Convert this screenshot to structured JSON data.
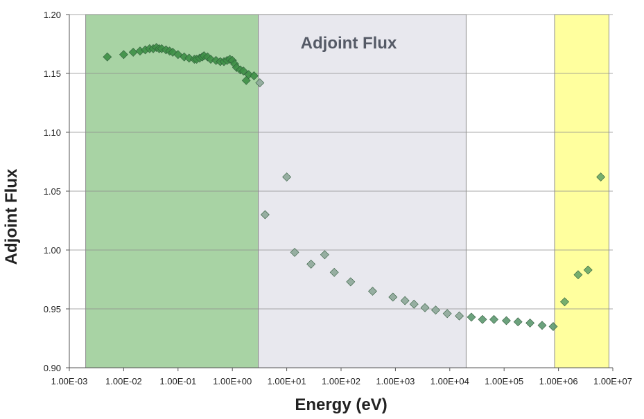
{
  "chart_data": {
    "type": "scatter",
    "title": "",
    "annotation": "Adjoint Flux",
    "xlabel": "Energy (eV)",
    "ylabel": "Adjoint Flux",
    "x_scale": "log",
    "xlim": [
      0.001,
      10000000
    ],
    "ylim": [
      0.9,
      1.2
    ],
    "x_tick_labels": [
      "1.00E-03",
      "1.00E-02",
      "1.00E-01",
      "1.00E+00",
      "1.00E+01",
      "1.00E+02",
      "1.00E+03",
      "1.00E+04",
      "1.00E+05",
      "1.00E+06",
      "1.00E+07"
    ],
    "y_tick_labels": [
      "0.90",
      "0.95",
      "1.00",
      "1.05",
      "1.10",
      "1.15",
      "1.20"
    ],
    "y_ticks": [
      0.9,
      0.95,
      1.0,
      1.05,
      1.1,
      1.15,
      1.2
    ],
    "grid": "horizontal",
    "legend": "none",
    "regions": [
      {
        "from": 0.002,
        "to": 3.0,
        "color": "#a8d3a4"
      },
      {
        "from": 3.0,
        "to": 20000,
        "color": "#e8e8ee"
      },
      {
        "from": 850000,
        "to": 8500000,
        "color": "#ffff9e"
      }
    ],
    "series": [
      {
        "color": "#2e8b57",
        "x": [
          0.005,
          0.01,
          0.015,
          0.02,
          0.025,
          0.03,
          0.035,
          0.04,
          0.045,
          0.05,
          0.06,
          0.07,
          0.08,
          0.1,
          0.13,
          0.16,
          0.2,
          0.22,
          0.25,
          0.28,
          0.3,
          0.35,
          0.4,
          0.5,
          0.6,
          0.7,
          0.8,
          0.9,
          1.0,
          1.1,
          1.2,
          1.4,
          1.6,
          1.8,
          2.0,
          2.5,
          3.2,
          10,
          4,
          14,
          28,
          50,
          75,
          150,
          380,
          900,
          1500,
          2200,
          3500,
          5500,
          9000,
          15000,
          25000,
          40000,
          65000,
          110000,
          180000,
          300000,
          500000,
          800000,
          1300000,
          2300000,
          3500000,
          6000000
        ],
        "y": [
          1.164,
          1.166,
          1.168,
          1.169,
          1.17,
          1.171,
          1.171,
          1.172,
          1.171,
          1.171,
          1.17,
          1.169,
          1.168,
          1.166,
          1.164,
          1.163,
          1.162,
          1.162,
          1.163,
          1.164,
          1.165,
          1.164,
          1.162,
          1.161,
          1.16,
          1.16,
          1.161,
          1.162,
          1.161,
          1.158,
          1.155,
          1.153,
          1.152,
          1.144,
          1.149,
          1.148,
          1.142,
          1.062,
          1.03,
          0.998,
          0.988,
          0.996,
          0.981,
          0.973,
          0.965,
          0.96,
          0.957,
          0.954,
          0.951,
          0.949,
          0.946,
          0.944,
          0.943,
          0.941,
          0.941,
          0.94,
          0.939,
          0.938,
          0.936,
          0.935,
          0.956,
          0.979,
          0.983,
          1.062
        ]
      }
    ]
  }
}
